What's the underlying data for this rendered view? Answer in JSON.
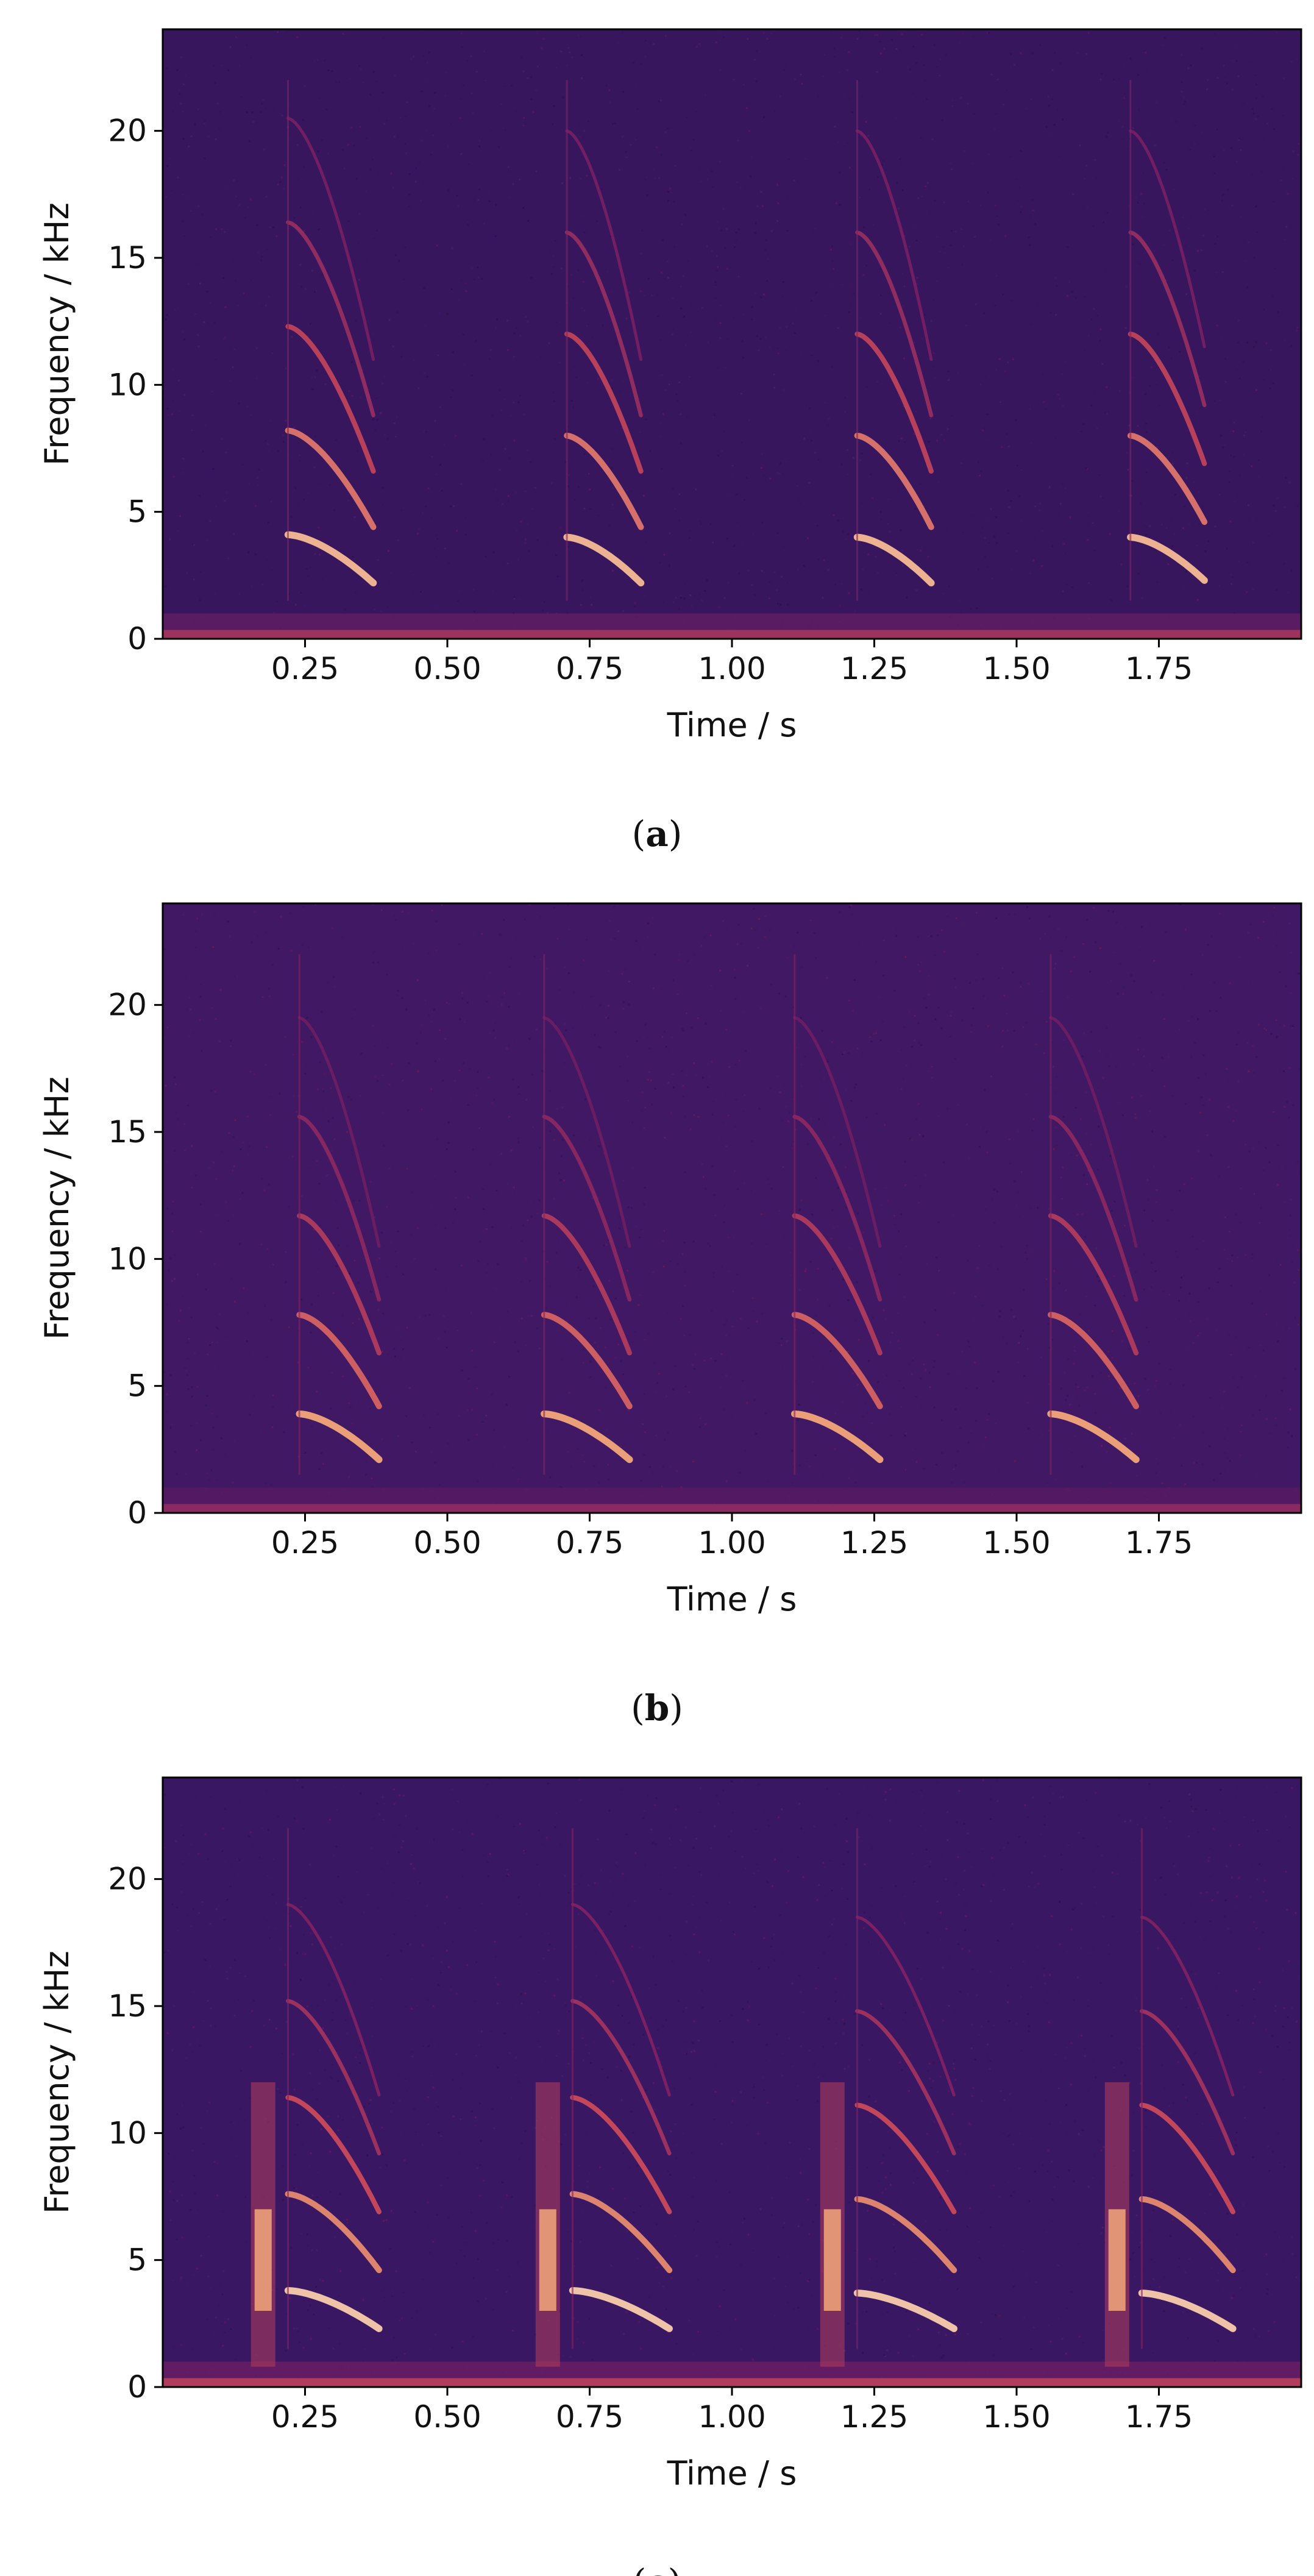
{
  "chart_data": [
    {
      "type": "heatmap",
      "panel_label": "a",
      "xlabel": "Time / s",
      "ylabel": "Frequency / kHz",
      "xlim": [
        0.0,
        2.0
      ],
      "ylim": [
        0,
        24
      ],
      "xticks": [
        0.25,
        0.5,
        0.75,
        1.0,
        1.25,
        1.5,
        1.75
      ],
      "xtick_labels": [
        "0.25",
        "0.50",
        "0.75",
        "1.00",
        "1.25",
        "1.50",
        "1.75"
      ],
      "yticks": [
        0,
        5,
        10,
        15,
        20
      ],
      "ytick_labels": [
        "0",
        "5",
        "10",
        "15",
        "20"
      ],
      "colormap": [
        "#1e0b33",
        "#3a1763",
        "#7a2063",
        "#c9485a",
        "#f3a77a",
        "#fcf1dc"
      ],
      "background_level": 0.18,
      "noise_floor_level": 0.5,
      "calls": [
        {
          "start": 0.22,
          "end": 0.37,
          "f0_start": 4.1,
          "f0_end": 2.2,
          "harmonics": 5,
          "brightness": 0.85
        },
        {
          "start": 0.71,
          "end": 0.84,
          "f0_start": 4.0,
          "f0_end": 2.2,
          "harmonics": 5,
          "brightness": 0.85
        },
        {
          "start": 1.22,
          "end": 1.35,
          "f0_start": 4.0,
          "f0_end": 2.2,
          "harmonics": 5,
          "brightness": 0.85
        },
        {
          "start": 1.7,
          "end": 1.83,
          "f0_start": 4.0,
          "f0_end": 2.3,
          "harmonics": 5,
          "brightness": 0.85
        }
      ]
    },
    {
      "type": "heatmap",
      "panel_label": "b",
      "xlabel": "Time / s",
      "ylabel": "Frequency / kHz",
      "xlim": [
        0.0,
        2.0
      ],
      "ylim": [
        0,
        24
      ],
      "xticks": [
        0.25,
        0.5,
        0.75,
        1.0,
        1.25,
        1.5,
        1.75
      ],
      "xtick_labels": [
        "0.25",
        "0.50",
        "0.75",
        "1.00",
        "1.25",
        "1.50",
        "1.75"
      ],
      "yticks": [
        0,
        5,
        10,
        15,
        20
      ],
      "ytick_labels": [
        "0",
        "5",
        "10",
        "15",
        "20"
      ],
      "colormap": [
        "#1e0b33",
        "#3a1763",
        "#7a2063",
        "#c9485a",
        "#f3a77a",
        "#fcf1dc"
      ],
      "background_level": 0.22,
      "noise_floor_level": 0.45,
      "calls": [
        {
          "start": 0.24,
          "end": 0.38,
          "f0_start": 3.9,
          "f0_end": 2.1,
          "harmonics": 5,
          "brightness": 0.8
        },
        {
          "start": 0.67,
          "end": 0.82,
          "f0_start": 3.9,
          "f0_end": 2.1,
          "harmonics": 5,
          "brightness": 0.8
        },
        {
          "start": 1.11,
          "end": 1.26,
          "f0_start": 3.9,
          "f0_end": 2.1,
          "harmonics": 5,
          "brightness": 0.8
        },
        {
          "start": 1.56,
          "end": 1.71,
          "f0_start": 3.9,
          "f0_end": 2.1,
          "harmonics": 5,
          "brightness": 0.8
        }
      ]
    },
    {
      "type": "heatmap",
      "panel_label": "c",
      "xlabel": "Time / s",
      "ylabel": "Frequency / kHz",
      "xlim": [
        0.0,
        2.0
      ],
      "ylim": [
        0,
        24
      ],
      "xticks": [
        0.25,
        0.5,
        0.75,
        1.0,
        1.25,
        1.5,
        1.75
      ],
      "xtick_labels": [
        "0.25",
        "0.50",
        "0.75",
        "1.00",
        "1.25",
        "1.50",
        "1.75"
      ],
      "yticks": [
        0,
        5,
        10,
        15,
        20
      ],
      "ytick_labels": [
        "0",
        "5",
        "10",
        "15",
        "20"
      ],
      "colormap": [
        "#1e0b33",
        "#3a1763",
        "#7a2063",
        "#c9485a",
        "#f3a77a",
        "#fcf1dc"
      ],
      "background_level": 0.2,
      "noise_floor_level": 0.55,
      "calls": [
        {
          "start": 0.22,
          "end": 0.38,
          "f0_start": 3.8,
          "f0_end": 2.3,
          "harmonics": 5,
          "brightness": 0.9,
          "onset_burst": 0.17
        },
        {
          "start": 0.72,
          "end": 0.89,
          "f0_start": 3.8,
          "f0_end": 2.3,
          "harmonics": 5,
          "brightness": 0.9,
          "onset_burst": 0.67
        },
        {
          "start": 1.22,
          "end": 1.39,
          "f0_start": 3.7,
          "f0_end": 2.3,
          "harmonics": 5,
          "brightness": 0.9,
          "onset_burst": 1.17
        },
        {
          "start": 1.72,
          "end": 1.88,
          "f0_start": 3.7,
          "f0_end": 2.3,
          "harmonics": 5,
          "brightness": 0.9,
          "onset_burst": 1.67
        }
      ]
    }
  ]
}
